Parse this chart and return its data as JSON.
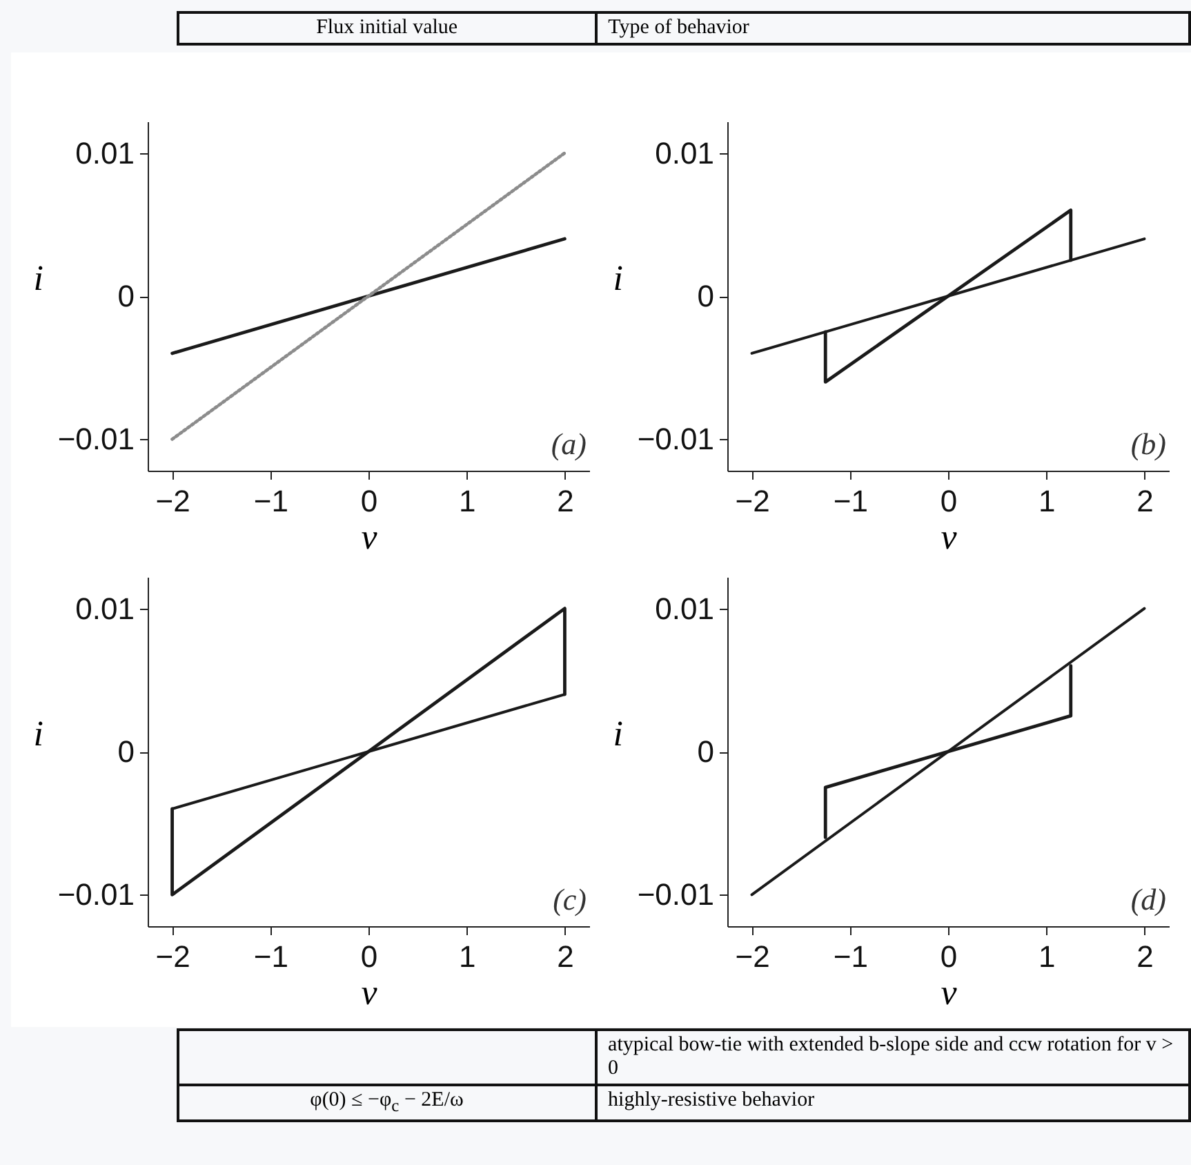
{
  "chart_data": [
    {
      "type": "line",
      "xlabel": "v",
      "ylabel": "i",
      "xlim": [
        -2.25,
        2.25
      ],
      "ylim": [
        -0.0122,
        0.0122
      ],
      "xticks": [
        -2,
        -1,
        0,
        1,
        2
      ],
      "yticks": [
        -0.01,
        0,
        0.01
      ],
      "grid": false,
      "annotations": [
        "(a)"
      ],
      "series": [
        {
          "color": "#1a1a1a",
          "line_style": "solid",
          "x": [
            -2,
            2
          ],
          "values": [
            -0.004,
            0.004
          ]
        },
        {
          "color": "#8c8c8c",
          "line_style": "dotted",
          "x": [
            -2,
            2
          ],
          "values": [
            -0.01,
            0.01
          ]
        }
      ]
    },
    {
      "type": "line",
      "xlabel": "v",
      "ylabel": "i",
      "xlim": [
        -2.25,
        2.25
      ],
      "ylim": [
        -0.0122,
        0.0122
      ],
      "xticks": [
        -2,
        -1,
        0,
        1,
        2
      ],
      "yticks": [
        -0.01,
        0,
        0.01
      ],
      "grid": false,
      "annotations": [
        "(b)"
      ],
      "series": [
        {
          "color": "#1a1a1a",
          "line_style": "solid",
          "x": [
            -2,
            2
          ],
          "values": [
            -0.004,
            0.004
          ]
        },
        {
          "color": "#1a1a1a",
          "line_style": "solid",
          "x": [
            -1.25,
            -1.25,
            1.25,
            1.25
          ],
          "values": [
            -0.0025,
            -0.006,
            0.006,
            0.0025
          ]
        }
      ]
    },
    {
      "type": "line",
      "xlabel": "v",
      "ylabel": "i",
      "xlim": [
        -2.25,
        2.25
      ],
      "ylim": [
        -0.0122,
        0.0122
      ],
      "xticks": [
        -2,
        -1,
        0,
        1,
        2
      ],
      "yticks": [
        -0.01,
        0,
        0.01
      ],
      "grid": false,
      "annotations": [
        "(c)"
      ],
      "series": [
        {
          "color": "#1a1a1a",
          "line_style": "solid",
          "x": [
            -2,
            2
          ],
          "values": [
            -0.004,
            0.004
          ]
        },
        {
          "color": "#1a1a1a",
          "line_style": "solid",
          "x": [
            -2,
            -2,
            2,
            2
          ],
          "values": [
            -0.004,
            -0.01,
            0.01,
            0.004
          ]
        }
      ]
    },
    {
      "type": "line",
      "xlabel": "v",
      "ylabel": "i",
      "xlim": [
        -2.25,
        2.25
      ],
      "ylim": [
        -0.0122,
        0.0122
      ],
      "xticks": [
        -2,
        -1,
        0,
        1,
        2
      ],
      "yticks": [
        -0.01,
        0,
        0.01
      ],
      "grid": false,
      "annotations": [
        "(d)"
      ],
      "series": [
        {
          "color": "#1a1a1a",
          "line_style": "solid",
          "x": [
            -2,
            2
          ],
          "values": [
            -0.01,
            0.01
          ]
        },
        {
          "color": "#1a1a1a",
          "line_style": "solid",
          "x": [
            -1.25,
            -1.25,
            1.25,
            1.25
          ],
          "values": [
            -0.006,
            -0.0025,
            0.0025,
            0.006
          ]
        }
      ]
    },
    {
      "type": "other",
      "annotations": [
        "Flux initial value",
        "Type of behavior",
        "atypical bow-tie with extended b-slope side and ccw rotation for v > 0",
        "φ(0) ≤ −φ$_{c}$ − 2E/ω",
        "highly-resistive behavior"
      ]
    }
  ]
}
